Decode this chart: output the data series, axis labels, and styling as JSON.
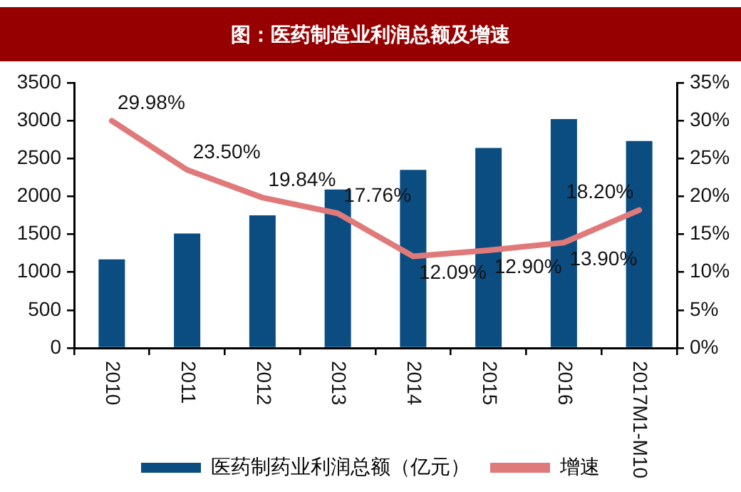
{
  "chart_data": {
    "type": "bar",
    "title": "图：医药制造业利润总额及增速",
    "categories": [
      "2010",
      "2011",
      "2012",
      "2013",
      "2014",
      "2015",
      "2016",
      "2017M1-M10"
    ],
    "series": [
      {
        "name": "医药制药业利润总额（亿元）",
        "color": "#0b4d80",
        "values": [
          1170,
          1510,
          1750,
          2090,
          2350,
          2640,
          3020,
          2730
        ]
      },
      {
        "name": "增速",
        "type": "line",
        "axis": "y2",
        "color": "#e07a7a",
        "values": [
          29.98,
          23.5,
          19.84,
          17.76,
          12.09,
          12.9,
          13.9,
          18.2
        ],
        "value_labels": [
          "29.98%",
          "23.50%",
          "19.84%",
          "17.76%",
          "12.09%",
          "12.90%",
          "13.90%",
          "18.20%"
        ]
      }
    ],
    "ylim": [
      0,
      3500
    ],
    "yticks": [
      0,
      500,
      1000,
      1500,
      2000,
      2500,
      3000,
      3500
    ],
    "y2lim": [
      0,
      35
    ],
    "y2ticks": [
      {
        "value": 0,
        "label": "0%"
      },
      {
        "value": 5,
        "label": "5%"
      },
      {
        "value": 10,
        "label": "10%"
      },
      {
        "value": 15,
        "label": "15%"
      },
      {
        "value": 20,
        "label": "20%"
      },
      {
        "value": 25,
        "label": "25%"
      },
      {
        "value": 30,
        "label": "30%"
      },
      {
        "value": 35,
        "label": "35%"
      }
    ],
    "legend": "bottom",
    "marker": "none",
    "line_style": "solid",
    "grid": false
  }
}
